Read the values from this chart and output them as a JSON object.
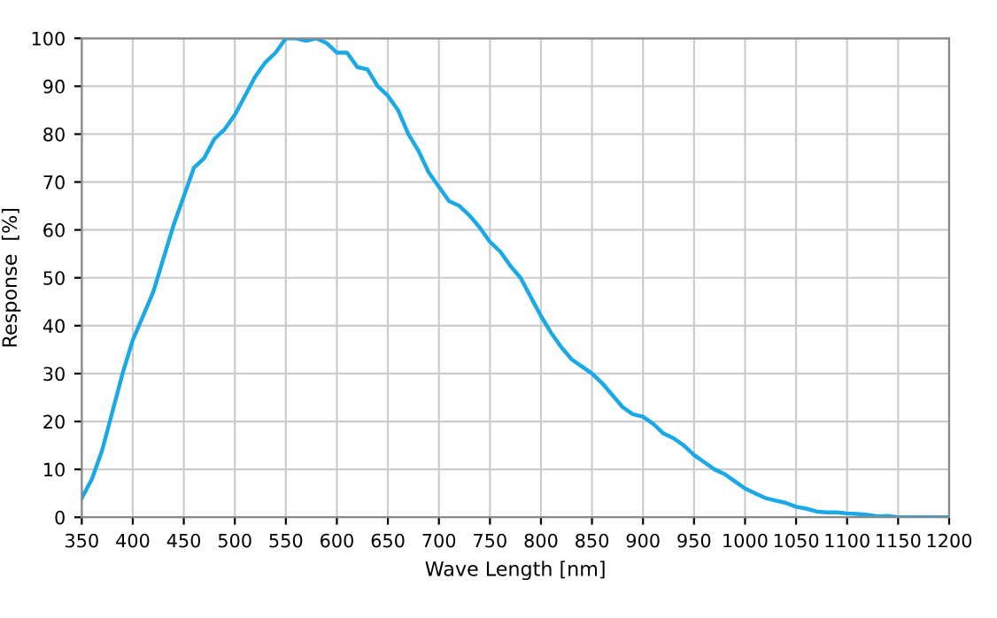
{
  "chart_data": {
    "type": "line",
    "xlabel": "Wave Length [nm]",
    "ylabel": "Response  [%]",
    "xlim": [
      350,
      1200
    ],
    "ylim": [
      0,
      100
    ],
    "xticks": [
      350,
      400,
      450,
      500,
      550,
      600,
      650,
      700,
      750,
      800,
      850,
      900,
      950,
      1000,
      1050,
      1100,
      1150,
      1200
    ],
    "yticks": [
      0,
      10,
      20,
      30,
      40,
      50,
      60,
      70,
      80,
      90,
      100
    ],
    "grid": true,
    "marker": "none",
    "line_style": "solid",
    "series": [
      {
        "color": "#1aa9e8",
        "x": [
          350,
          360,
          370,
          380,
          390,
          400,
          410,
          420,
          430,
          440,
          450,
          460,
          470,
          480,
          490,
          500,
          510,
          520,
          530,
          540,
          550,
          560,
          570,
          580,
          590,
          600,
          610,
          620,
          630,
          640,
          650,
          660,
          670,
          680,
          690,
          700,
          710,
          720,
          730,
          740,
          750,
          760,
          770,
          780,
          790,
          800,
          810,
          820,
          830,
          840,
          850,
          860,
          870,
          880,
          890,
          900,
          910,
          920,
          930,
          940,
          950,
          960,
          970,
          980,
          990,
          1000,
          1010,
          1020,
          1030,
          1040,
          1050,
          1060,
          1070,
          1080,
          1090,
          1100,
          1110,
          1120,
          1130,
          1140,
          1150,
          1200
        ],
        "values": [
          4,
          8,
          14,
          22,
          30,
          37,
          42,
          47,
          54,
          61,
          67,
          73,
          75,
          79,
          81,
          84,
          88,
          92,
          95,
          97,
          100,
          100,
          99.5,
          100,
          99,
          97,
          97,
          94,
          93.5,
          90,
          88,
          85,
          80,
          76.5,
          72,
          69,
          66,
          65,
          63,
          60.5,
          57.5,
          55.5,
          52.5,
          50,
          46,
          42,
          38.5,
          35.5,
          33,
          31.5,
          30,
          28,
          25.5,
          23,
          21.5,
          21,
          19.5,
          17.5,
          16.5,
          15,
          13,
          11.5,
          10,
          9,
          7.5,
          6,
          5,
          4,
          3.5,
          3,
          2.2,
          1.8,
          1.2,
          1,
          1,
          0.8,
          0.7,
          0.5,
          0.2,
          0.3,
          0,
          0
        ]
      }
    ]
  }
}
